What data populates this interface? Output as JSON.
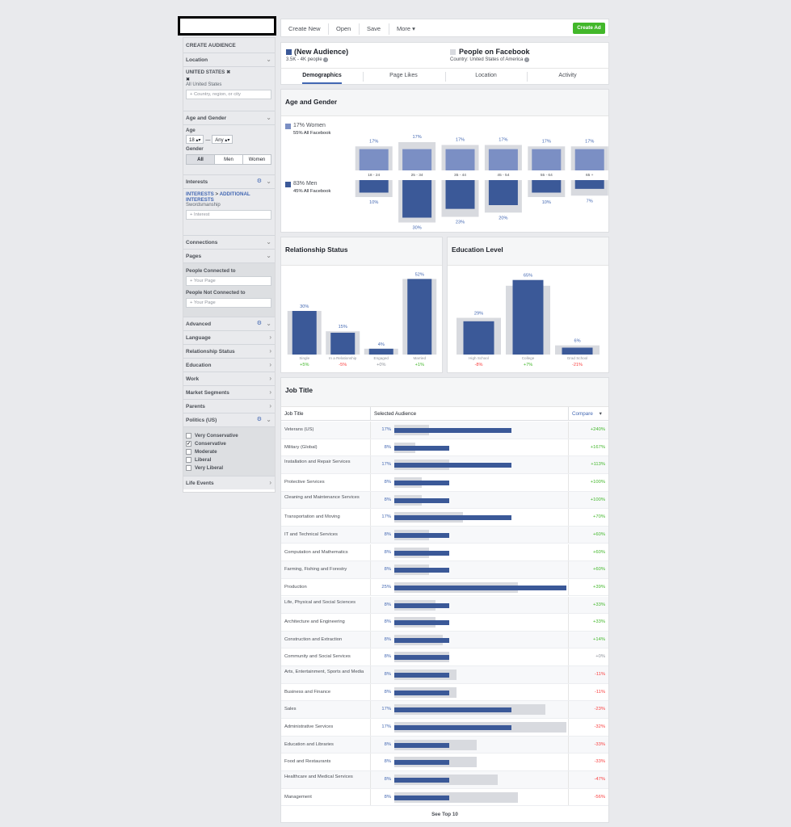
{
  "toolbar": {
    "create_new": "Create New",
    "open": "Open",
    "save": "Save",
    "more": "More",
    "create_ad": "Create Ad"
  },
  "sidebar": {
    "title": "CREATE AUDIENCE",
    "location": {
      "label": "Location",
      "country": "UNITED STATES",
      "scope": "All United States",
      "placeholder": "Country, region, or city"
    },
    "age_gender": {
      "label": "Age and Gender",
      "age_label": "Age",
      "age_min": "18",
      "age_sep": "—",
      "age_max": "Any",
      "gender_label": "Gender",
      "gender_options": [
        "All",
        "Men",
        "Women"
      ],
      "gender_selected": "All"
    },
    "interests": {
      "label": "Interests",
      "path_a": "INTERESTS",
      "path_sep": " > ",
      "path_b": "ADDITIONAL INTERESTS",
      "value": "Swordsmanship",
      "placeholder": "Interest"
    },
    "connections": "Connections",
    "pages": {
      "label": "Pages",
      "connected": "People Connected to",
      "not_connected": "People Not Connected to",
      "placeholder": "Your Page"
    },
    "advanced": "Advanced",
    "rows": [
      "Language",
      "Relationship Status",
      "Education",
      "Work",
      "Market Segments",
      "Parents"
    ],
    "politics": {
      "label": "Politics (US)",
      "options": [
        {
          "label": "Very Conservative",
          "checked": false
        },
        {
          "label": "Conservative",
          "checked": true
        },
        {
          "label": "Moderate",
          "checked": false
        },
        {
          "label": "Liberal",
          "checked": false
        },
        {
          "label": "Very Liberal",
          "checked": false
        }
      ]
    },
    "life_events": "Life Events"
  },
  "audience": {
    "name": "(New Audience)",
    "size": "3.5K - 4K people",
    "compare_name": "People on Facebook",
    "compare_country": "Country: United States of America",
    "colors": {
      "audience": "#3b5998",
      "facebook": "#d8dadf"
    }
  },
  "tabs": [
    "Demographics",
    "Page Likes",
    "Location",
    "Activity"
  ],
  "active_tab": "Demographics",
  "age_gender_card": {
    "title": "Age and Gender",
    "women_pct": "17% Women",
    "women_fb": "55% All Facebook",
    "men_pct": "83% Men",
    "men_fb": "45% All Facebook"
  },
  "relationship_card": {
    "title": "Relationship Status"
  },
  "education_card": {
    "title": "Education Level"
  },
  "job_card": {
    "title": "Job Title",
    "col_job": "Job Title",
    "col_sel": "Selected Audience",
    "col_cmp": "Compare",
    "see_top": "See Top 10"
  },
  "chart_data": [
    {
      "type": "bar",
      "title": "Age and Gender",
      "categories": [
        "18 - 24",
        "25 - 34",
        "35 - 44",
        "45 - 54",
        "55 - 64",
        "65 +"
      ],
      "series": [
        {
          "name": "Women",
          "values": [
            17,
            17,
            17,
            17,
            17,
            17
          ],
          "labels": [
            "17%",
            "17%",
            "17%",
            "17%",
            "17%",
            "17%"
          ]
        },
        {
          "name": "Men",
          "values": [
            10,
            30,
            23,
            20,
            10,
            7
          ],
          "labels": [
            "10%",
            "30%",
            "23%",
            "20%",
            "10%",
            "7%"
          ]
        }
      ],
      "facebook_women": [
        17,
        20,
        18,
        18,
        17,
        17
      ],
      "facebook_men": [
        12,
        30,
        26,
        23,
        12,
        11
      ]
    },
    {
      "type": "bar",
      "title": "Relationship Status",
      "categories": [
        "Single",
        "In a Relationship",
        "Engaged",
        "Married"
      ],
      "values": [
        30,
        15,
        4,
        52
      ],
      "labels": [
        "30%",
        "15%",
        "4%",
        "52%"
      ],
      "facebook": [
        30,
        16,
        4,
        52
      ],
      "compare": [
        "+5%",
        "-5%",
        "+0%",
        "+1%"
      ]
    },
    {
      "type": "bar",
      "title": "Education Level",
      "categories": [
        "High School",
        "College",
        "Grad School"
      ],
      "values": [
        29,
        65,
        6
      ],
      "labels": [
        "29%",
        "65%",
        "6%"
      ],
      "facebook": [
        32,
        60,
        8
      ],
      "compare": [
        "-8%",
        "+7%",
        "-21%"
      ]
    },
    {
      "type": "table",
      "title": "Job Title",
      "rows": [
        {
          "name": "Veterans (US)",
          "pct": "17%",
          "sel": 17,
          "fb": 5,
          "cmp": "+240%"
        },
        {
          "name": "Military (Global)",
          "pct": "8%",
          "sel": 8,
          "fb": 3,
          "cmp": "+167%"
        },
        {
          "name": "Installation and Repair Services",
          "pct": "17%",
          "sel": 17,
          "fb": 8,
          "cmp": "+113%"
        },
        {
          "name": "Protective Services",
          "pct": "8%",
          "sel": 8,
          "fb": 4,
          "cmp": "+100%"
        },
        {
          "name": "Cleaning and Maintenance Services",
          "pct": "8%",
          "sel": 8,
          "fb": 4,
          "cmp": "+100%"
        },
        {
          "name": "Transportation and Moving",
          "pct": "17%",
          "sel": 17,
          "fb": 10,
          "cmp": "+70%"
        },
        {
          "name": "IT and Technical Services",
          "pct": "8%",
          "sel": 8,
          "fb": 5,
          "cmp": "+60%"
        },
        {
          "name": "Computation and Mathematics",
          "pct": "8%",
          "sel": 8,
          "fb": 5,
          "cmp": "+60%"
        },
        {
          "name": "Farming, Fishing and Forestry",
          "pct": "8%",
          "sel": 8,
          "fb": 5,
          "cmp": "+60%"
        },
        {
          "name": "Production",
          "pct": "25%",
          "sel": 25,
          "fb": 18,
          "cmp": "+39%"
        },
        {
          "name": "Life, Physical and Social Sciences",
          "pct": "8%",
          "sel": 8,
          "fb": 6,
          "cmp": "+33%"
        },
        {
          "name": "Architecture and Engineering",
          "pct": "8%",
          "sel": 8,
          "fb": 6,
          "cmp": "+33%"
        },
        {
          "name": "Construction and Extraction",
          "pct": "8%",
          "sel": 8,
          "fb": 7,
          "cmp": "+14%"
        },
        {
          "name": "Community and Social Services",
          "pct": "8%",
          "sel": 8,
          "fb": 8,
          "cmp": "+0%"
        },
        {
          "name": "Arts, Entertainment, Sports and Media",
          "pct": "8%",
          "sel": 8,
          "fb": 9,
          "cmp": "-11%"
        },
        {
          "name": "Business and Finance",
          "pct": "8%",
          "sel": 8,
          "fb": 9,
          "cmp": "-11%"
        },
        {
          "name": "Sales",
          "pct": "17%",
          "sel": 17,
          "fb": 22,
          "cmp": "-23%"
        },
        {
          "name": "Administrative Services",
          "pct": "17%",
          "sel": 17,
          "fb": 25,
          "cmp": "-32%"
        },
        {
          "name": "Education and Libraries",
          "pct": "8%",
          "sel": 8,
          "fb": 12,
          "cmp": "-33%"
        },
        {
          "name": "Food and Restaurants",
          "pct": "8%",
          "sel": 8,
          "fb": 12,
          "cmp": "-33%"
        },
        {
          "name": "Healthcare and Medical Services",
          "pct": "8%",
          "sel": 8,
          "fb": 15,
          "cmp": "-47%"
        },
        {
          "name": "Management",
          "pct": "8%",
          "sel": 8,
          "fb": 18,
          "cmp": "-56%"
        }
      ]
    }
  ]
}
